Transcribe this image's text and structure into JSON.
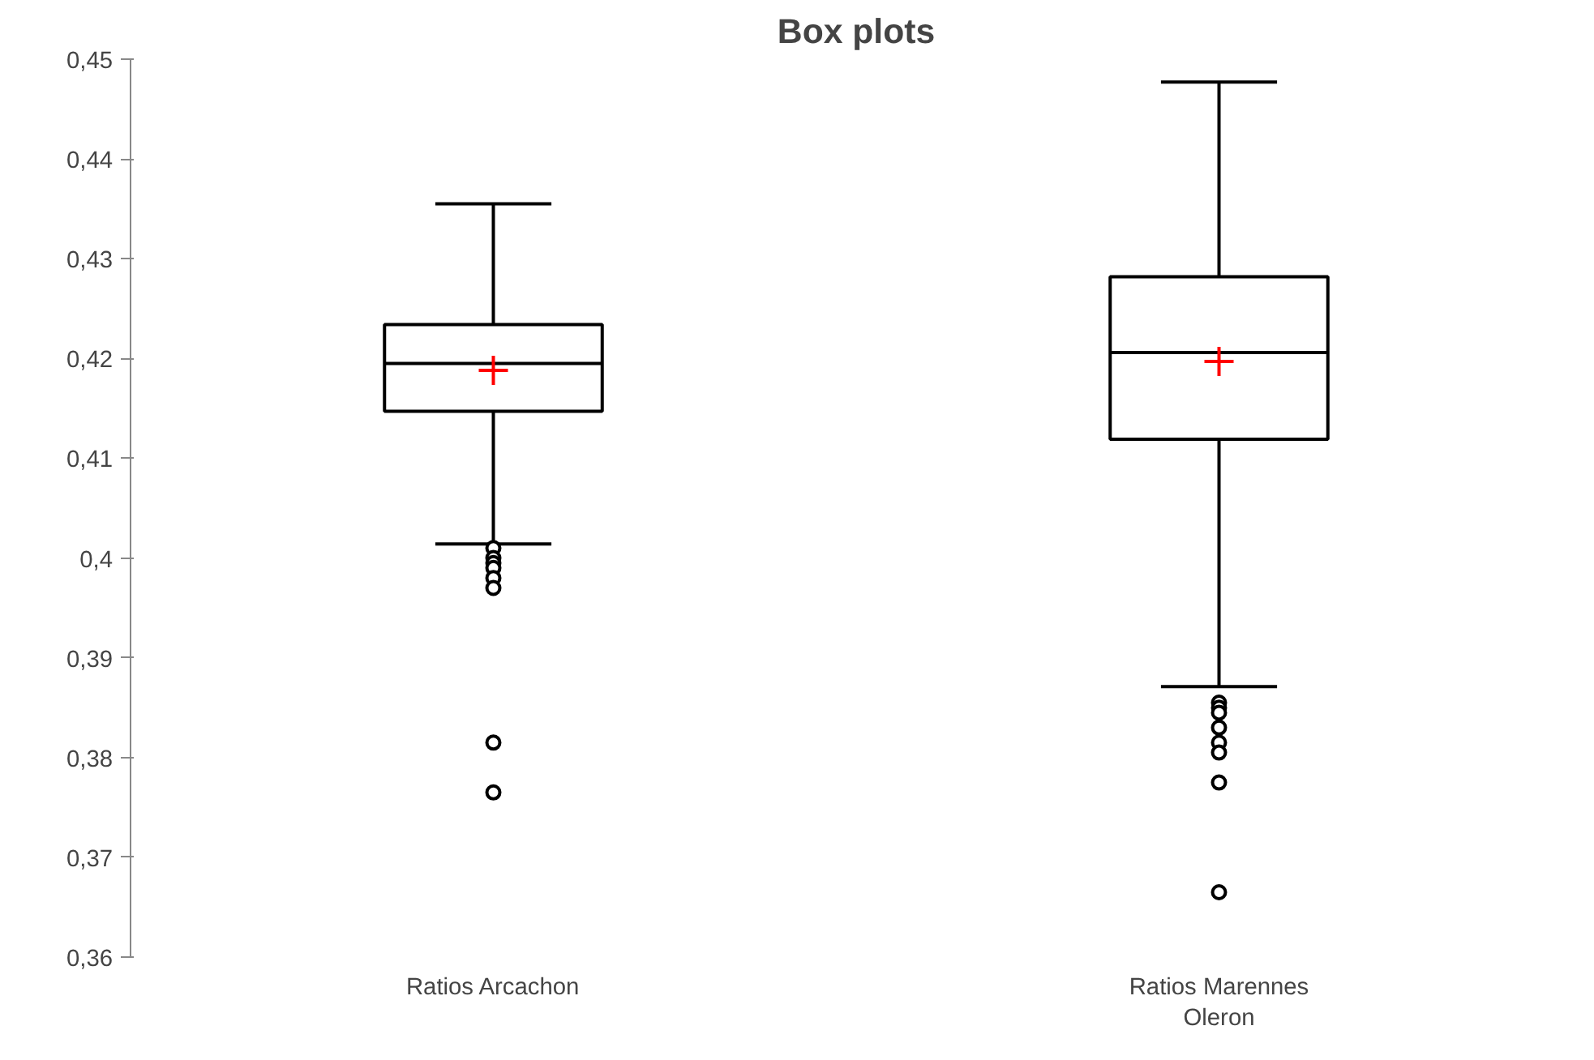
{
  "chart_data": {
    "type": "box",
    "title": "Box plots",
    "categories": [
      "Ratios Arcachon",
      "Ratios Marennes Oleron"
    ],
    "boxes": [
      {
        "low": 0.4014,
        "q1": 0.4147,
        "median": 0.4195,
        "q3": 0.4234,
        "high": 0.4355,
        "mean": 0.4188,
        "outliers": [
          0.401,
          0.4,
          0.3995,
          0.399,
          0.398,
          0.397,
          0.3815,
          0.3765
        ]
      },
      {
        "low": 0.3871,
        "q1": 0.4119,
        "median": 0.4206,
        "q3": 0.4282,
        "high": 0.4477,
        "mean": 0.4197,
        "outliers": [
          0.3855,
          0.385,
          0.3845,
          0.383,
          0.3815,
          0.3805,
          0.3775,
          0.3665
        ]
      }
    ],
    "color": "#000000",
    "ylim": [
      0.36,
      0.45
    ],
    "yticks": [
      {
        "value": 0.36,
        "label": "0,36"
      },
      {
        "value": 0.37,
        "label": "0,37"
      },
      {
        "value": 0.38,
        "label": "0,38"
      },
      {
        "value": 0.39,
        "label": "0,39"
      },
      {
        "value": 0.4,
        "label": "0,4"
      },
      {
        "value": 0.41,
        "label": "0,41"
      },
      {
        "value": 0.42,
        "label": "0,42"
      },
      {
        "value": 0.43,
        "label": "0,43"
      },
      {
        "value": 0.44,
        "label": "0,44"
      },
      {
        "value": 0.45,
        "label": "0,45"
      }
    ],
    "grid": false
  }
}
